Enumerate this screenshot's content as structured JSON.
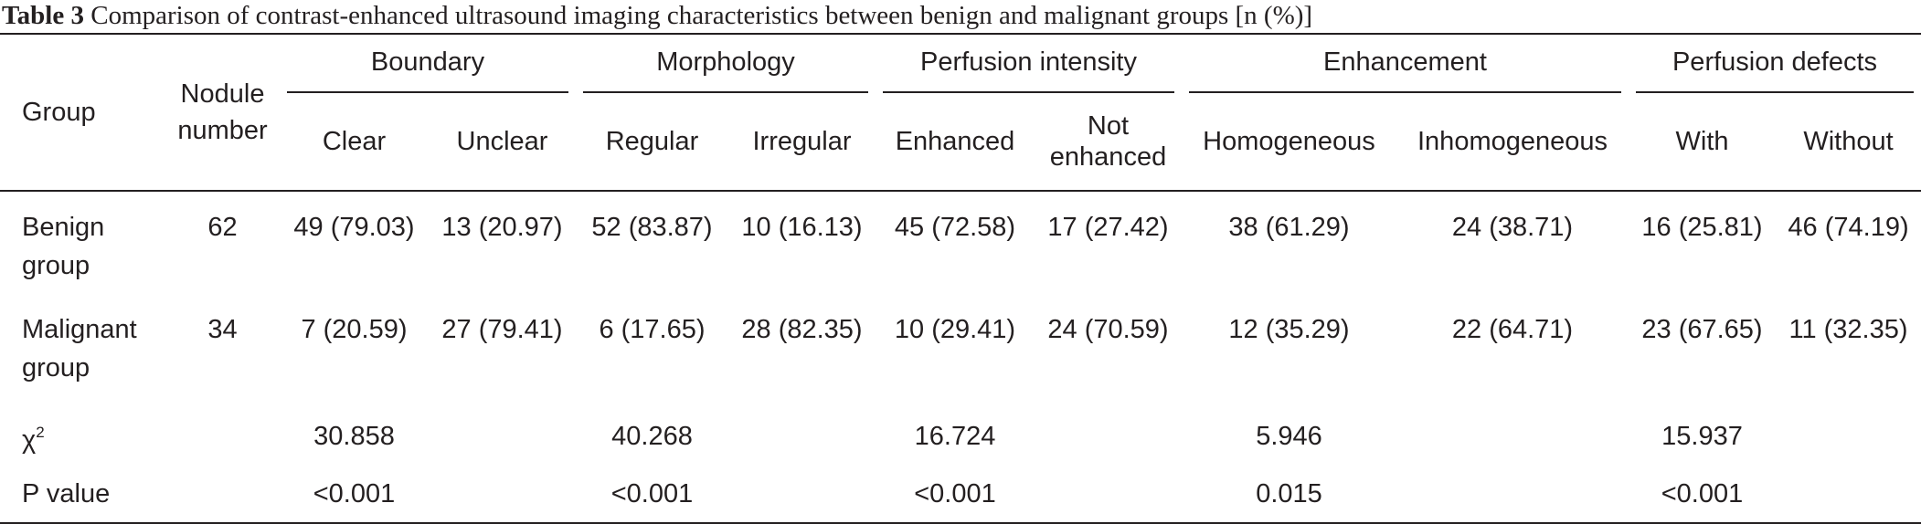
{
  "title": {
    "label": "Table 3",
    "text": "Comparison of contrast-enhanced ultrasound imaging characteristics between benign and malignant groups [n (%)]"
  },
  "table": {
    "header": {
      "group": "Group",
      "nodule_number": "Nodule number",
      "groups": [
        {
          "name": "Boundary",
          "sub": [
            "Clear",
            "Unclear"
          ]
        },
        {
          "name": "Morphology",
          "sub": [
            "Regular",
            "Irregular"
          ]
        },
        {
          "name": "Perfusion intensity",
          "sub": [
            "Enhanced",
            "Not enhanced"
          ]
        },
        {
          "name": "Enhancement",
          "sub": [
            "Homogeneous",
            "Inhomogeneous"
          ]
        },
        {
          "name": "Perfusion defects",
          "sub": [
            "With",
            "Without"
          ]
        }
      ]
    },
    "rows": [
      {
        "group": "Benign group",
        "nodule_number": "62",
        "values": [
          "49 (79.03)",
          "13 (20.97)",
          "52 (83.87)",
          "10 (16.13)",
          "45 (72.58)",
          "17 (27.42)",
          "38 (61.29)",
          "24 (38.71)",
          "16 (25.81)",
          "46 (74.19)"
        ]
      },
      {
        "group": "Malignant group",
        "nodule_number": "34",
        "values": [
          "7 (20.59)",
          "27 (79.41)",
          "6 (17.65)",
          "28 (82.35)",
          "10 (29.41)",
          "24 (70.59)",
          "12 (35.29)",
          "22 (64.71)",
          "23 (67.65)",
          "11 (32.35)"
        ]
      }
    ],
    "stats": [
      {
        "label": {
          "base": "χ",
          "sup": "2"
        },
        "values": [
          "30.858",
          "40.268",
          "16.724",
          "5.946",
          "15.937"
        ]
      },
      {
        "label": "P value",
        "values": [
          "<0.001",
          "<0.001",
          "<0.001",
          "0.015",
          "<0.001"
        ]
      }
    ]
  }
}
